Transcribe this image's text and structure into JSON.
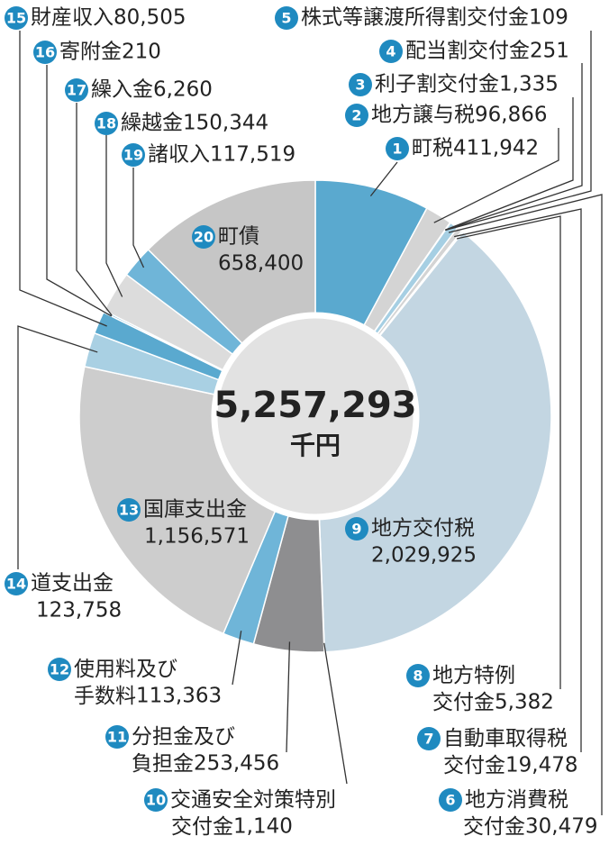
{
  "chart_data": {
    "type": "donut",
    "ids": [
      1,
      2,
      3,
      4,
      5,
      6,
      7,
      8,
      9,
      10,
      11,
      12,
      13,
      14,
      15,
      16,
      17,
      18,
      19,
      20
    ],
    "categories": [
      "町税",
      "地方譲与税",
      "利子割交付金",
      "配当割交付金",
      "株式等譲渡所得割交付金",
      "地方消費税交付金",
      "自動車取得税交付金",
      "地方特例交付金",
      "地方交付税",
      "交通安全対策特別交付金",
      "分担金及び負担金",
      "使用料及び手数料",
      "国庫支出金",
      "道支出金",
      "財産収入",
      "寄附金",
      "繰入金",
      "繰越金",
      "諸収入",
      "町債"
    ],
    "values": [
      411942,
      96866,
      1335,
      251,
      109,
      30479,
      19478,
      5382,
      2029925,
      1140,
      253456,
      113363,
      1156571,
      123758,
      80505,
      210,
      6260,
      150344,
      117519,
      658400
    ],
    "value_labels": [
      "411,942",
      "96,866",
      "1,335",
      "251",
      "109",
      "30,479",
      "19,478",
      "5,382",
      "2,029,925",
      "1,140",
      "253,456",
      "113,363",
      "1,156,571",
      "123,758",
      "80,505",
      "210",
      "6,260",
      "150,344",
      "117,519",
      "658,400"
    ],
    "colors": [
      "#5aa9cf",
      "#d4d4d4",
      "#5aa9cf",
      "#d4d4d4",
      "#5aa9cf",
      "#a6cfe3",
      "#d4d4d4",
      "#5aa9cf",
      "#c3d6e2",
      "#5aa9cf",
      "#8e8e90",
      "#6fb5d8",
      "#cdcdcd",
      "#a9d0e3",
      "#5aa9cf",
      "#d4d4d4",
      "#5aa9cf",
      "#dcdcdc",
      "#6fb5d8",
      "#c6c6c6"
    ],
    "total": {
      "value": 5257293,
      "label": "5,257,293"
    },
    "unit": "千円"
  }
}
